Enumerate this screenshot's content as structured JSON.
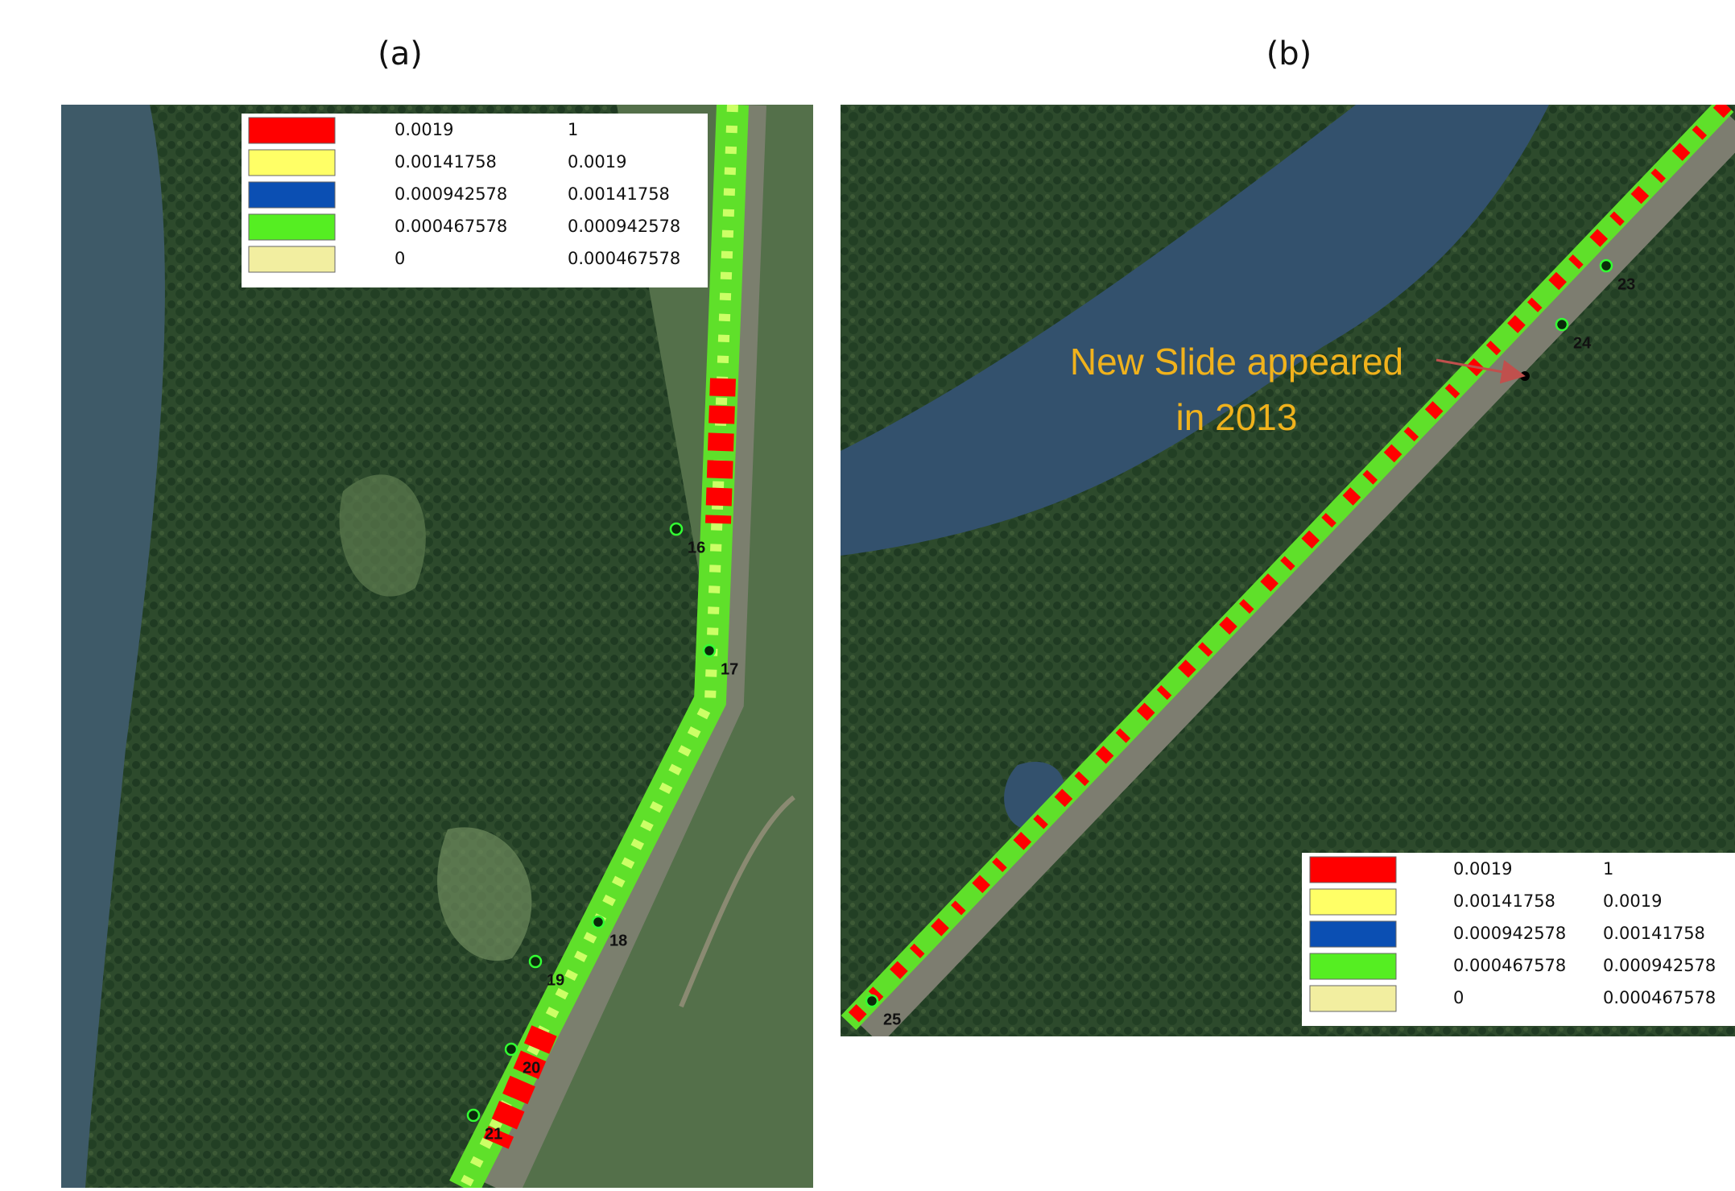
{
  "panels": [
    {
      "label": "(a)",
      "legend": [
        {
          "color": "#ff0000",
          "from": "0.0019",
          "to": "1"
        },
        {
          "color": "#ffff66",
          "from": "0.00141758",
          "to": "0.0019"
        },
        {
          "color": "#0b4fb3",
          "from": "0.000942578",
          "to": "0.00141758"
        },
        {
          "color": "#55ee22",
          "from": "0.000467578",
          "to": "0.000942578"
        },
        {
          "color": "#f2eea0",
          "from": "0",
          "to": "0.000467578"
        }
      ],
      "points": [
        "16",
        "17",
        "18",
        "19",
        "20",
        "21"
      ]
    },
    {
      "label": "(b)",
      "legend": [
        {
          "color": "#ff0000",
          "from": "0.0019",
          "to": "1"
        },
        {
          "color": "#ffff66",
          "from": "0.00141758",
          "to": "0.0019"
        },
        {
          "color": "#0b4fb3",
          "from": "0.000942578",
          "to": "0.00141758"
        },
        {
          "color": "#55ee22",
          "from": "0.000467578",
          "to": "0.000942578"
        },
        {
          "color": "#f2eea0",
          "from": "0",
          "to": "0.000467578"
        }
      ],
      "points": [
        "23",
        "24",
        "25"
      ],
      "annotation": [
        "New Slide appeared",
        "in 2013"
      ]
    }
  ]
}
